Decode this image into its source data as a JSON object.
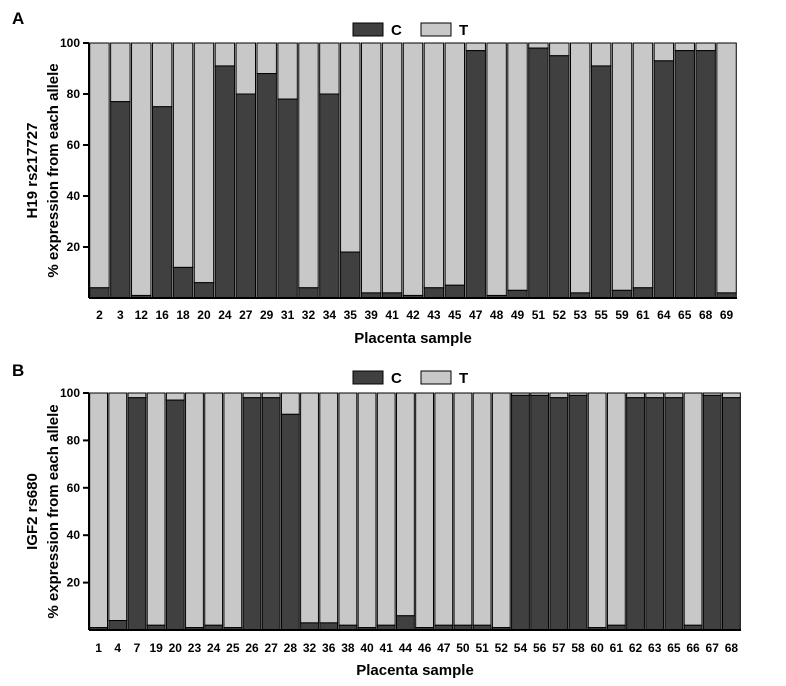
{
  "colors": {
    "C": "#404040",
    "T": "#c8c8c8",
    "axis": "#000000"
  },
  "chart_data": [
    {
      "type": "bar",
      "panel_label": "A",
      "stacked": true,
      "xlabel": "Placenta sample",
      "ylabel_line1": "H19 rs217727",
      "ylabel_line2": "% expression from each allele",
      "ylim": [
        0,
        100
      ],
      "yticks": [
        20,
        40,
        60,
        80,
        100
      ],
      "legend": {
        "placement": "top-center",
        "entries": [
          "C",
          "T"
        ]
      },
      "categories": [
        "2",
        "3",
        "12",
        "16",
        "18",
        "20",
        "24",
        "27",
        "29",
        "31",
        "32",
        "34",
        "35",
        "39",
        "41",
        "42",
        "43",
        "45",
        "47",
        "48",
        "49",
        "51",
        "52",
        "53",
        "55",
        "59",
        "61",
        "64",
        "65",
        "68",
        "69"
      ],
      "series": [
        {
          "name": "C",
          "values": [
            4,
            77,
            1,
            75,
            12,
            6,
            91,
            80,
            88,
            78,
            4,
            80,
            18,
            2,
            2,
            1,
            4,
            5,
            97,
            1,
            3,
            98,
            95,
            2,
            91,
            3,
            4,
            93,
            97,
            97,
            2
          ]
        },
        {
          "name": "T",
          "values": [
            96,
            23,
            99,
            25,
            88,
            94,
            9,
            20,
            12,
            22,
            96,
            20,
            82,
            98,
            98,
            99,
            96,
            95,
            3,
            99,
            97,
            2,
            5,
            98,
            9,
            97,
            96,
            7,
            3,
            3,
            98
          ]
        }
      ]
    },
    {
      "type": "bar",
      "panel_label": "B",
      "stacked": true,
      "xlabel": "Placenta sample",
      "ylabel_line1": "IGF2 rs680",
      "ylabel_line2": "% expression from each allele",
      "ylim": [
        0,
        100
      ],
      "yticks": [
        20,
        40,
        60,
        80,
        100
      ],
      "legend": {
        "placement": "top-center",
        "entries": [
          "C",
          "T"
        ]
      },
      "categories": [
        "1",
        "4",
        "7",
        "19",
        "20",
        "23",
        "24",
        "25",
        "26",
        "27",
        "28",
        "32",
        "36",
        "38",
        "40",
        "41",
        "44",
        "46",
        "47",
        "50",
        "51",
        "52",
        "54",
        "56",
        "57",
        "58",
        "60",
        "61",
        "62",
        "63",
        "65",
        "66",
        "67",
        "68"
      ],
      "series": [
        {
          "name": "C",
          "values": [
            1,
            4,
            98,
            2,
            97,
            1,
            2,
            1,
            98,
            98,
            91,
            3,
            3,
            2,
            1,
            2,
            6,
            1,
            2,
            2,
            2,
            1,
            99,
            99,
            98,
            99,
            1,
            2,
            98,
            98,
            98,
            2,
            99,
            98
          ]
        },
        {
          "name": "T",
          "values": [
            99,
            96,
            2,
            98,
            3,
            99,
            98,
            99,
            2,
            2,
            9,
            97,
            97,
            98,
            99,
            98,
            94,
            99,
            98,
            98,
            98,
            99,
            1,
            1,
            2,
            1,
            99,
            98,
            2,
            2,
            2,
            98,
            1,
            2
          ]
        }
      ]
    }
  ]
}
